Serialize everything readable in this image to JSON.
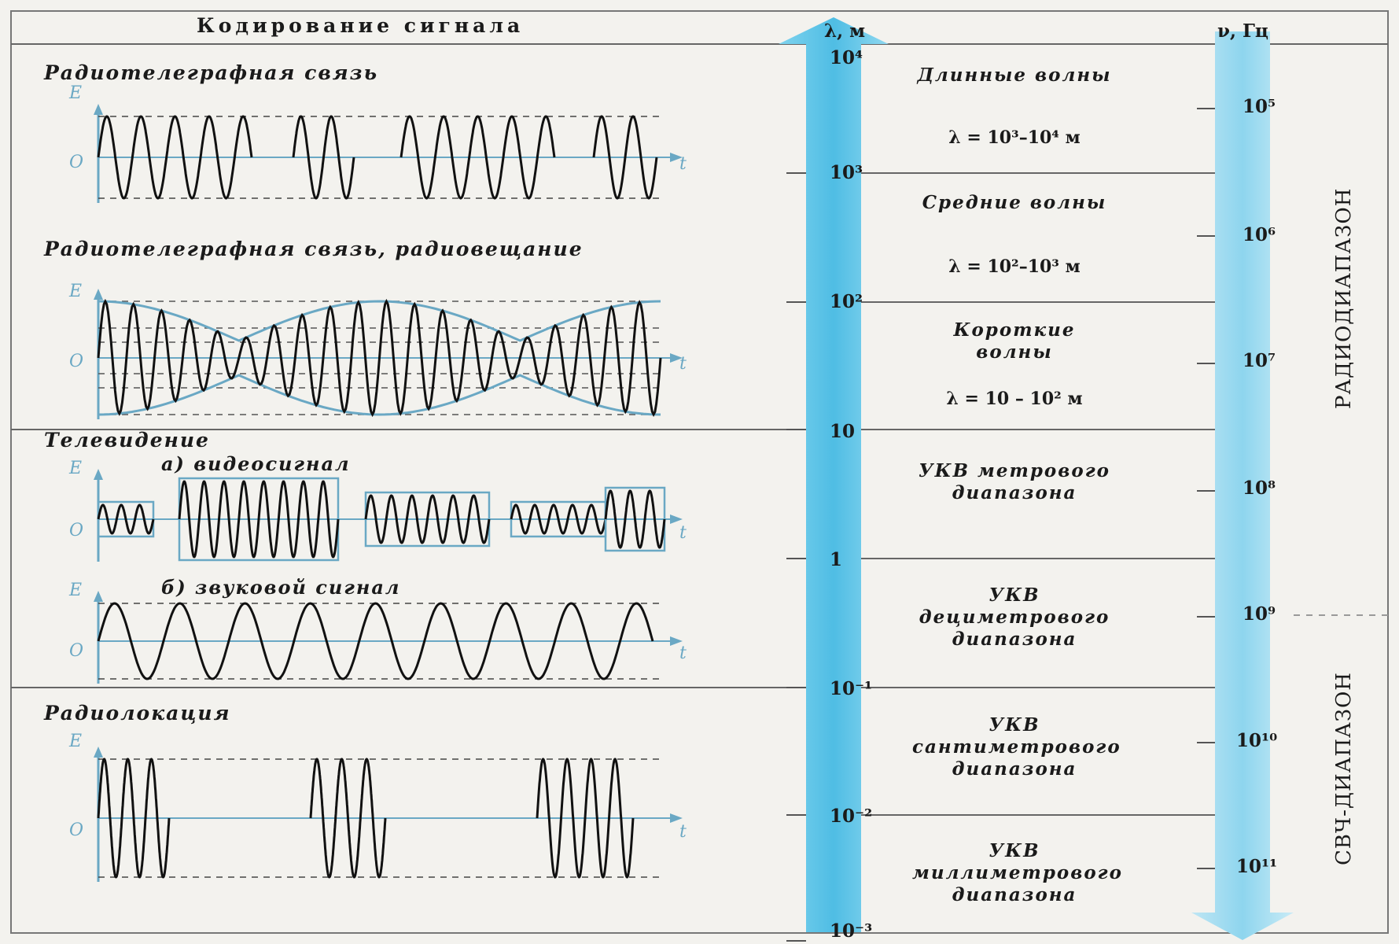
{
  "header": {
    "title": "Кодирование сигнала",
    "lambda_unit": "λ, м",
    "nu_unit": "ν, Гц"
  },
  "signals": [
    {
      "title": "Радиотелеграфная связь"
    },
    {
      "title": "Радиотелеграфная связь, радиовещание"
    },
    {
      "title": "Телевидение",
      "sub": [
        "а) видеосигнал",
        "б) звуковой сигнал"
      ]
    },
    {
      "title": "Радиолокация"
    }
  ],
  "axis_letters": {
    "e": "E",
    "o": "O",
    "t": "t"
  },
  "lambda_ticks": [
    "10⁴",
    "10³",
    "10²",
    "10",
    "1",
    "10⁻¹",
    "10⁻²",
    "10⁻³"
  ],
  "bands": [
    {
      "name": "Длинные волны",
      "range": "λ = 10³–10⁴ м"
    },
    {
      "name": "Средние волны",
      "range": "λ = 10²–10³ м"
    },
    {
      "name": "Короткие волны",
      "range": "λ = 10 – 10² м"
    },
    {
      "name": "УКВ метрового диапазона",
      "range": ""
    },
    {
      "name": "УКВ дециметрового диапазона",
      "range": ""
    },
    {
      "name": "УКВ сантиметрового диапазона",
      "range": ""
    },
    {
      "name": "УКВ миллиметрового диапазона",
      "range": ""
    }
  ],
  "freq_ticks": [
    "10⁵",
    "10⁶",
    "10⁷",
    "10⁸",
    "10⁹",
    "10¹⁰",
    "10¹¹"
  ],
  "ranges": {
    "radio": "РАДИОДИАПАЗОН",
    "microwave": "СВЧ-ДИАПАЗОН"
  },
  "colors": {
    "accent": "#5cc3e6",
    "accent_light": "#bfe6f4",
    "axis": "#6aa8c4"
  }
}
